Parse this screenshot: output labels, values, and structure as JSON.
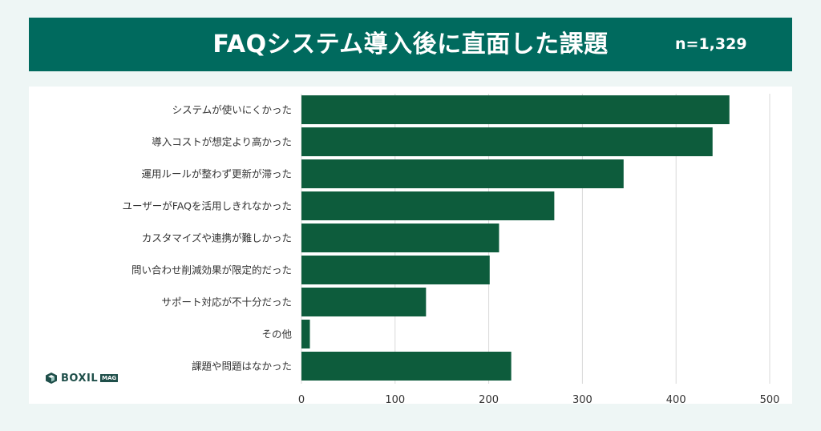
{
  "header": {
    "title": "FAQシステム導入後に直面した課題",
    "n_label": "n=1,329"
  },
  "brand": {
    "logo_text": "BOXIL",
    "logo_badge": "MAG"
  },
  "colors": {
    "header_bg": "#006a5e",
    "bar": "#0d5c3c",
    "grid": "#d9d9d9"
  },
  "chart_data": {
    "type": "bar",
    "orientation": "horizontal",
    "title": "FAQシステム導入後に直面した課題",
    "categories": [
      "システムが使いにくかった",
      "導入コストが想定より高かった",
      "運用ルールが整わず更新が滞った",
      "ユーザーがFAQを活用しきれなかった",
      "カスタマイズや連携が難しかった",
      "問い合わせ削減効果が限定的だった",
      "サポート対応が不十分だった",
      "その他",
      "課題や問題はなかった"
    ],
    "values": [
      457,
      439,
      344,
      270,
      211,
      201,
      133,
      9,
      224
    ],
    "xlim": [
      0,
      500
    ],
    "xticks": [
      "0",
      "100",
      "200",
      "300",
      "400",
      "500"
    ],
    "grid": true,
    "legend": "none"
  }
}
